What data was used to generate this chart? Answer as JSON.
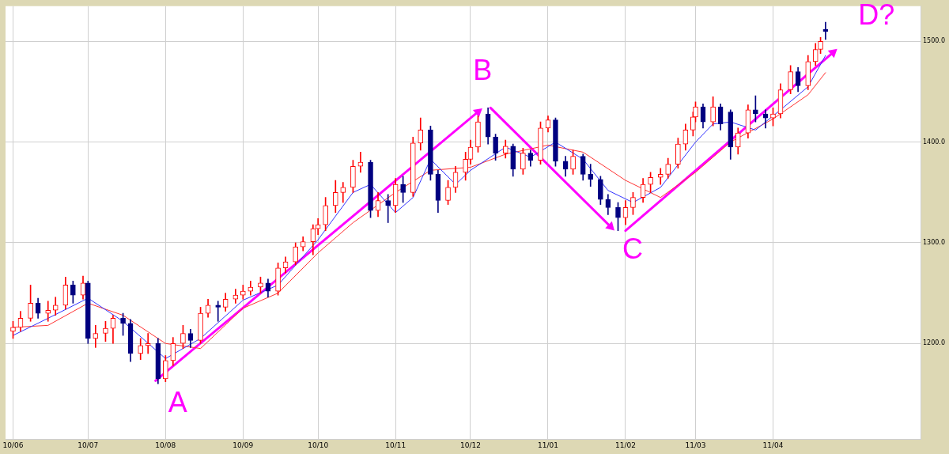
{
  "chart_data": {
    "type": "candlestick",
    "x": [
      "2010-06-01",
      "2010-06-04",
      "2010-06-08",
      "2010-06-11",
      "2010-06-15",
      "2010-06-18",
      "2010-06-22",
      "2010-06-25",
      "2010-06-29",
      "2010-07-01",
      "2010-07-04",
      "2010-07-08",
      "2010-07-11",
      "2010-07-15",
      "2010-07-18",
      "2010-07-22",
      "2010-07-25",
      "2010-07-29",
      "2010-08-01",
      "2010-08-04",
      "2010-08-08",
      "2010-08-11",
      "2010-08-15",
      "2010-08-18",
      "2010-08-22",
      "2010-08-25",
      "2010-08-29",
      "2010-09-01",
      "2010-09-04",
      "2010-09-08",
      "2010-09-11",
      "2010-09-15",
      "2010-09-18",
      "2010-09-22",
      "2010-09-25",
      "2010-09-29",
      "2010-10-01",
      "2010-10-04",
      "2010-10-08",
      "2010-10-11",
      "2010-10-15",
      "2010-10-18",
      "2010-10-22",
      "2010-10-25",
      "2010-10-29",
      "2010-11-01",
      "2010-11-04",
      "2010-11-08",
      "2010-11-11",
      "2010-11-15",
      "2010-11-18",
      "2010-11-22",
      "2010-11-25",
      "2010-11-29",
      "2010-12-01",
      "2010-12-04",
      "2010-12-08",
      "2010-12-11",
      "2010-12-15",
      "2010-12-18",
      "2010-12-22",
      "2010-12-25",
      "2010-12-29",
      "2011-01-01",
      "2011-01-04",
      "2011-01-08",
      "2011-01-11",
      "2011-01-15",
      "2011-01-18",
      "2011-01-22",
      "2011-01-25",
      "2011-01-29",
      "2011-02-01",
      "2011-02-04",
      "2011-02-08",
      "2011-02-11",
      "2011-02-15",
      "2011-02-18",
      "2011-02-22",
      "2011-02-25",
      "2011-02-28",
      "2011-03-01",
      "2011-03-04",
      "2011-03-08",
      "2011-03-11",
      "2011-03-15",
      "2011-03-18",
      "2011-03-22",
      "2011-03-25",
      "2011-03-29",
      "2011-04-01",
      "2011-04-04",
      "2011-04-08",
      "2011-04-11",
      "2011-04-15",
      "2011-04-18",
      "2011-04-20",
      "2011-04-22"
    ],
    "ohlc": [
      [
        1212,
        1222,
        1205,
        1216
      ],
      [
        1216,
        1232,
        1212,
        1225
      ],
      [
        1225,
        1258,
        1222,
        1240
      ],
      [
        1240,
        1245,
        1225,
        1230
      ],
      [
        1230,
        1242,
        1222,
        1233
      ],
      [
        1233,
        1246,
        1228,
        1238
      ],
      [
        1238,
        1266,
        1234,
        1258
      ],
      [
        1258,
        1262,
        1240,
        1248
      ],
      [
        1248,
        1267,
        1244,
        1260
      ],
      [
        1260,
        1262,
        1200,
        1205
      ],
      [
        1205,
        1218,
        1196,
        1210
      ],
      [
        1210,
        1222,
        1202,
        1215
      ],
      [
        1215,
        1228,
        1200,
        1225
      ],
      [
        1225,
        1230,
        1208,
        1220
      ],
      [
        1220,
        1224,
        1182,
        1190
      ],
      [
        1190,
        1205,
        1184,
        1198
      ],
      [
        1198,
        1210,
        1190,
        1200
      ],
      [
        1200,
        1205,
        1160,
        1165
      ],
      [
        1165,
        1188,
        1162,
        1183
      ],
      [
        1183,
        1206,
        1178,
        1200
      ],
      [
        1200,
        1218,
        1195,
        1210
      ],
      [
        1210,
        1214,
        1196,
        1203
      ],
      [
        1203,
        1236,
        1200,
        1230
      ],
      [
        1230,
        1244,
        1226,
        1238
      ],
      [
        1238,
        1242,
        1222,
        1236
      ],
      [
        1236,
        1250,
        1232,
        1244
      ],
      [
        1244,
        1254,
        1240,
        1248
      ],
      [
        1248,
        1258,
        1244,
        1252
      ],
      [
        1252,
        1262,
        1248,
        1256
      ],
      [
        1256,
        1266,
        1250,
        1260
      ],
      [
        1260,
        1264,
        1246,
        1252
      ],
      [
        1252,
        1280,
        1248,
        1275
      ],
      [
        1275,
        1286,
        1270,
        1281
      ],
      [
        1281,
        1300,
        1278,
        1296
      ],
      [
        1296,
        1306,
        1292,
        1301
      ],
      [
        1301,
        1318,
        1288,
        1314
      ],
      [
        1314,
        1324,
        1308,
        1318
      ],
      [
        1318,
        1345,
        1312,
        1337
      ],
      [
        1337,
        1362,
        1330,
        1350
      ],
      [
        1350,
        1360,
        1340,
        1355
      ],
      [
        1355,
        1382,
        1350,
        1376
      ],
      [
        1376,
        1390,
        1370,
        1380
      ],
      [
        1380,
        1382,
        1325,
        1332
      ],
      [
        1332,
        1350,
        1326,
        1342
      ],
      [
        1342,
        1348,
        1320,
        1337
      ],
      [
        1337,
        1364,
        1330,
        1358
      ],
      [
        1358,
        1366,
        1340,
        1350
      ],
      [
        1350,
        1405,
        1346,
        1399
      ],
      [
        1399,
        1424,
        1392,
        1412
      ],
      [
        1412,
        1416,
        1362,
        1368
      ],
      [
        1368,
        1372,
        1330,
        1342
      ],
      [
        1342,
        1362,
        1338,
        1355
      ],
      [
        1355,
        1376,
        1350,
        1370
      ],
      [
        1370,
        1390,
        1362,
        1383
      ],
      [
        1383,
        1402,
        1378,
        1395
      ],
      [
        1395,
        1426,
        1390,
        1420
      ],
      [
        1428,
        1434,
        1398,
        1405
      ],
      [
        1405,
        1408,
        1382,
        1389
      ],
      [
        1389,
        1402,
        1384,
        1396
      ],
      [
        1396,
        1398,
        1366,
        1373
      ],
      [
        1373,
        1394,
        1368,
        1389
      ],
      [
        1389,
        1392,
        1376,
        1382
      ],
      [
        1382,
        1420,
        1378,
        1414
      ],
      [
        1414,
        1426,
        1410,
        1422
      ],
      [
        1422,
        1424,
        1376,
        1381
      ],
      [
        1381,
        1386,
        1366,
        1373
      ],
      [
        1373,
        1392,
        1368,
        1386
      ],
      [
        1386,
        1388,
        1362,
        1368
      ],
      [
        1368,
        1378,
        1356,
        1363
      ],
      [
        1363,
        1366,
        1338,
        1343
      ],
      [
        1343,
        1348,
        1328,
        1335
      ],
      [
        1335,
        1340,
        1312,
        1325
      ],
      [
        1325,
        1342,
        1318,
        1335
      ],
      [
        1335,
        1350,
        1328,
        1345
      ],
      [
        1345,
        1364,
        1340,
        1358
      ],
      [
        1358,
        1370,
        1350,
        1365
      ],
      [
        1365,
        1374,
        1358,
        1368
      ],
      [
        1368,
        1384,
        1364,
        1378
      ],
      [
        1378,
        1404,
        1374,
        1398
      ],
      [
        1398,
        1418,
        1392,
        1412
      ],
      [
        1412,
        1430,
        1406,
        1425
      ],
      [
        1425,
        1440,
        1420,
        1435
      ],
      [
        1435,
        1438,
        1414,
        1420
      ],
      [
        1420,
        1445,
        1416,
        1435
      ],
      [
        1435,
        1438,
        1412,
        1418
      ],
      [
        1430,
        1432,
        1383,
        1395
      ],
      [
        1395,
        1414,
        1388,
        1409
      ],
      [
        1409,
        1437,
        1404,
        1432
      ],
      [
        1432,
        1446,
        1420,
        1428
      ],
      [
        1428,
        1432,
        1414,
        1424
      ],
      [
        1424,
        1434,
        1416,
        1428
      ],
      [
        1428,
        1458,
        1424,
        1452
      ],
      [
        1452,
        1476,
        1448,
        1470
      ],
      [
        1470,
        1474,
        1450,
        1456
      ],
      [
        1456,
        1486,
        1452,
        1480
      ],
      [
        1480,
        1498,
        1476,
        1492
      ],
      [
        1492,
        1504,
        1488,
        1500
      ],
      [
        1512,
        1519,
        1502,
        1510
      ]
    ],
    "colors": [
      "#ff0000",
      "#ff0000",
      "#ff0000",
      "#000080",
      "#ff0000",
      "#ff0000",
      "#ff0000",
      "#000080",
      "#ff0000",
      "#000080",
      "#ff0000",
      "#ff0000",
      "#ff0000",
      "#000080",
      "#000080",
      "#ff0000",
      "#ff0000",
      "#000080",
      "#ff0000",
      "#ff0000",
      "#ff0000",
      "#000080",
      "#ff0000",
      "#ff0000",
      "#000080",
      "#ff0000",
      "#ff0000",
      "#ff0000",
      "#ff0000",
      "#ff0000",
      "#000080",
      "#ff0000",
      "#ff0000",
      "#ff0000",
      "#ff0000",
      "#ff0000",
      "#ff0000",
      "#ff0000",
      "#ff0000",
      "#ff0000",
      "#ff0000",
      "#ff0000",
      "#000080",
      "#ff0000",
      "#000080",
      "#ff0000",
      "#000080",
      "#ff0000",
      "#ff0000",
      "#000080",
      "#000080",
      "#ff0000",
      "#ff0000",
      "#ff0000",
      "#ff0000",
      "#ff0000",
      "#000080",
      "#000080",
      "#ff0000",
      "#000080",
      "#ff0000",
      "#000080",
      "#ff0000",
      "#ff0000",
      "#000080",
      "#000080",
      "#ff0000",
      "#000080",
      "#000080",
      "#000080",
      "#000080",
      "#000080",
      "#ff0000",
      "#ff0000",
      "#ff0000",
      "#ff0000",
      "#ff0000",
      "#ff0000",
      "#ff0000",
      "#ff0000",
      "#ff0000",
      "#ff0000",
      "#000080",
      "#ff0000",
      "#000080",
      "#000080",
      "#ff0000",
      "#ff0000",
      "#000080",
      "#000080",
      "#ff0000",
      "#ff0000",
      "#ff0000",
      "#000080",
      "#ff0000",
      "#ff0000",
      "#ff0000",
      "#000080"
    ],
    "series": [
      {
        "type": "line",
        "color": "#3333ff",
        "x": [
          "2010-06-01",
          "2010-06-15",
          "2010-07-01",
          "2010-07-15",
          "2010-08-01",
          "2010-08-15",
          "2010-09-01",
          "2010-09-15",
          "2010-10-01",
          "2010-10-15",
          "2010-10-22",
          "2010-11-01",
          "2010-11-08",
          "2010-11-15",
          "2010-11-25",
          "2010-12-01",
          "2010-12-15",
          "2010-12-25",
          "2011-01-04",
          "2011-01-15",
          "2011-01-25",
          "2011-02-04",
          "2011-02-15",
          "2011-03-01",
          "2011-03-08",
          "2011-03-15",
          "2011-03-25",
          "2011-04-04",
          "2011-04-15",
          "2011-04-22"
        ],
        "values": [
          1208,
          1225,
          1245,
          1222,
          1185,
          1205,
          1243,
          1258,
          1303,
          1350,
          1358,
          1330,
          1345,
          1383,
          1358,
          1372,
          1395,
          1385,
          1400,
          1383,
          1352,
          1340,
          1355,
          1400,
          1418,
          1420,
          1412,
          1432,
          1455,
          1486
        ]
      },
      {
        "type": "line",
        "color": "#ff3333",
        "x": [
          "2010-06-01",
          "2010-06-15",
          "2010-07-01",
          "2010-07-15",
          "2010-08-01",
          "2010-08-15",
          "2010-09-01",
          "2010-09-15",
          "2010-10-01",
          "2010-10-15",
          "2010-11-01",
          "2010-11-15",
          "2010-12-01",
          "2010-12-15",
          "2011-01-01",
          "2011-01-15",
          "2011-02-01",
          "2011-02-15",
          "2011-03-01",
          "2011-03-15",
          "2011-04-01",
          "2011-04-15",
          "2011-04-22"
        ],
        "values": [
          1216,
          1218,
          1240,
          1228,
          1200,
          1195,
          1235,
          1250,
          1290,
          1320,
          1350,
          1372,
          1375,
          1388,
          1397,
          1390,
          1362,
          1345,
          1370,
          1400,
          1423,
          1447,
          1469
        ]
      },
      {
        "type": "line",
        "color": "#ff00ff",
        "marker": "triangle",
        "x": [
          "2010-07-28",
          "2010-12-04"
        ],
        "values": [
          1163,
          1430
        ]
      },
      {
        "type": "line",
        "color": "#ff00ff",
        "marker": "triangle",
        "x": [
          "2010-12-09",
          "2011-01-26"
        ],
        "values": [
          1434,
          1316
        ]
      },
      {
        "type": "line",
        "color": "#ff00ff",
        "marker": "triangle",
        "x": [
          "2011-02-01",
          "2011-04-25"
        ],
        "values": [
          1312,
          1489
        ]
      }
    ],
    "annotations": [
      {
        "text": "A",
        "x": "2010-07-28",
        "y": 1163
      },
      {
        "text": "B",
        "x": "2010-12-09",
        "y": 1434
      },
      {
        "text": "C",
        "x": "2011-01-26",
        "y": 1316
      },
      {
        "text": "D?",
        "x": "2011-04-25",
        "y": 1489
      }
    ],
    "xlim": [
      "2010-05-29",
      "2011-05-30"
    ],
    "xticks": [
      {
        "value": "2010-06-01",
        "label": "10/06"
      },
      {
        "value": "2010-07-01",
        "label": "10/07"
      },
      {
        "value": "2010-08-01",
        "label": "10/08"
      },
      {
        "value": "2010-09-01",
        "label": "10/09"
      },
      {
        "value": "2010-10-01",
        "label": "10/10"
      },
      {
        "value": "2010-11-01",
        "label": "10/11"
      },
      {
        "value": "2010-12-01",
        "label": "10/12"
      },
      {
        "value": "2011-01-01",
        "label": "11/01"
      },
      {
        "value": "2011-02-01",
        "label": "11/02"
      },
      {
        "value": "2011-03-01",
        "label": "11/03"
      },
      {
        "value": "2011-04-01",
        "label": "11/04"
      }
    ],
    "ylim": [
      1105,
      1535
    ],
    "yticks": [
      {
        "value": 1200,
        "label": "1200.0"
      },
      {
        "value": 1300,
        "label": "1300.0"
      },
      {
        "value": 1400,
        "label": "1400.0"
      },
      {
        "value": 1500,
        "label": "1500.0"
      }
    ],
    "grid": true,
    "legend": false,
    "marker": "none"
  }
}
